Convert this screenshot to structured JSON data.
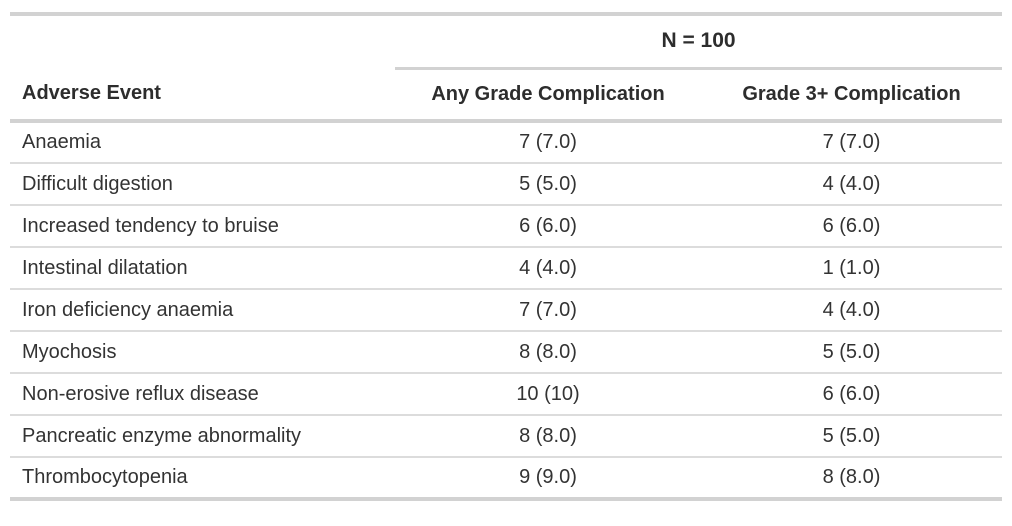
{
  "chart_data": {
    "type": "table",
    "spanner": "N = 100",
    "columns": [
      "Adverse Event",
      "Any Grade Complication",
      "Grade 3+ Complication"
    ],
    "rows": [
      {
        "event": "Anaemia",
        "any_grade": "7 (7.0)",
        "grade3": "7 (7.0)"
      },
      {
        "event": "Difficult digestion",
        "any_grade": "5 (5.0)",
        "grade3": "4 (4.0)"
      },
      {
        "event": "Increased tendency to bruise",
        "any_grade": "6 (6.0)",
        "grade3": "6 (6.0)"
      },
      {
        "event": "Intestinal dilatation",
        "any_grade": "4 (4.0)",
        "grade3": "1 (1.0)"
      },
      {
        "event": "Iron deficiency anaemia",
        "any_grade": "7 (7.0)",
        "grade3": "4 (4.0)"
      },
      {
        "event": "Myochosis",
        "any_grade": "8 (8.0)",
        "grade3": "5 (5.0)"
      },
      {
        "event": "Non-erosive reflux disease",
        "any_grade": "10 (10)",
        "grade3": "6 (6.0)"
      },
      {
        "event": "Pancreatic enzyme abnormality",
        "any_grade": "8 (8.0)",
        "grade3": "5 (5.0)"
      },
      {
        "event": "Thrombocytopenia",
        "any_grade": "9 (9.0)",
        "grade3": "8 (8.0)"
      }
    ],
    "layout_hints": {
      "grid": "horizontal-rules-only",
      "value_format": "n (%)"
    },
    "colors": {
      "text": "#333333",
      "header_text": "#2d2d2d",
      "border_thick": "#d2d2d2",
      "border_thin": "#dcdcdc",
      "background": "#ffffff"
    }
  }
}
